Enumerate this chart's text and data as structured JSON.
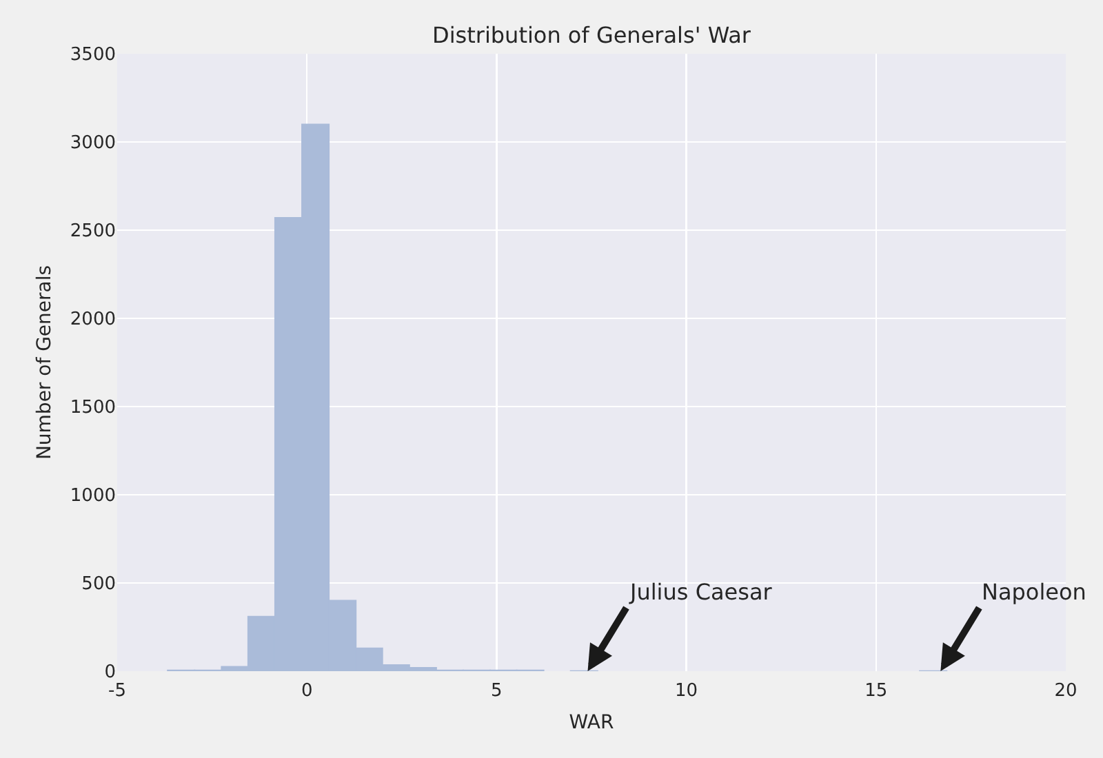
{
  "chart_data": {
    "type": "histogram",
    "title": "Distribution of Generals' War",
    "xlabel": "WAR",
    "ylabel": "Number of Generals",
    "bins": [
      -3.67,
      -2.96,
      -2.25,
      -1.55,
      -0.84,
      -0.13,
      0.58,
      1.29,
      1.99,
      2.7,
      3.41,
      4.12,
      4.83,
      5.53,
      6.24,
      6.95,
      7.66,
      16.15,
      16.86
    ],
    "values": [
      5,
      5,
      25,
      310,
      2570,
      3100,
      400,
      130,
      35,
      20,
      5,
      5,
      5,
      5,
      0,
      1,
      0,
      1
    ],
    "color": "#aabbd9",
    "xlim": [
      -5,
      20
    ],
    "xticks": [
      -5,
      0,
      5,
      10,
      15,
      20
    ],
    "ylim": [
      0,
      3500
    ],
    "yticks": [
      0,
      500,
      1000,
      1500,
      2000,
      2500,
      3000,
      3500
    ],
    "grid": true,
    "annotations": [
      {
        "text": "Julius Caesar",
        "x": 7.4,
        "y": 0
      },
      {
        "text": "Napoleon",
        "x": 16.7,
        "y": 0
      }
    ]
  }
}
